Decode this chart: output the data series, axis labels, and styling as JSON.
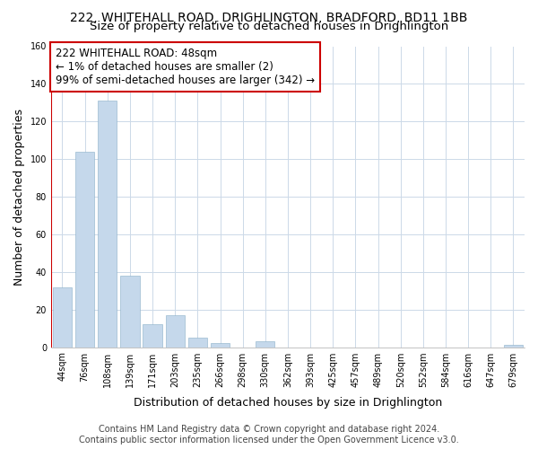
{
  "title": "222, WHITEHALL ROAD, DRIGHLINGTON, BRADFORD, BD11 1BB",
  "subtitle": "Size of property relative to detached houses in Drighlington",
  "xlabel": "Distribution of detached houses by size in Drighlington",
  "ylabel": "Number of detached properties",
  "bin_labels": [
    "44sqm",
    "76sqm",
    "108sqm",
    "139sqm",
    "171sqm",
    "203sqm",
    "235sqm",
    "266sqm",
    "298sqm",
    "330sqm",
    "362sqm",
    "393sqm",
    "425sqm",
    "457sqm",
    "489sqm",
    "520sqm",
    "552sqm",
    "584sqm",
    "616sqm",
    "647sqm",
    "679sqm"
  ],
  "bar_heights": [
    32,
    104,
    131,
    38,
    12,
    17,
    5,
    2,
    0,
    3,
    0,
    0,
    0,
    0,
    0,
    0,
    0,
    0,
    0,
    0,
    1
  ],
  "bar_color": "#c5d8eb",
  "highlight_edge_color": "#cc0000",
  "highlight_bar_index": 0,
  "ylim": [
    0,
    160
  ],
  "yticks": [
    0,
    20,
    40,
    60,
    80,
    100,
    120,
    140,
    160
  ],
  "annotation_line1": "222 WHITEHALL ROAD: 48sqm",
  "annotation_line2": "← 1% of detached houses are smaller (2)",
  "annotation_line3": "99% of semi-detached houses are larger (342) →",
  "annotation_box_color": "#ffffff",
  "annotation_edge_color": "#cc0000",
  "footer_line1": "Contains HM Land Registry data © Crown copyright and database right 2024.",
  "footer_line2": "Contains public sector information licensed under the Open Government Licence v3.0.",
  "background_color": "#ffffff",
  "grid_color": "#ccd9e8",
  "title_fontsize": 10,
  "subtitle_fontsize": 9.5,
  "axis_label_fontsize": 9,
  "tick_fontsize": 7,
  "annotation_fontsize": 8.5,
  "footer_fontsize": 7
}
